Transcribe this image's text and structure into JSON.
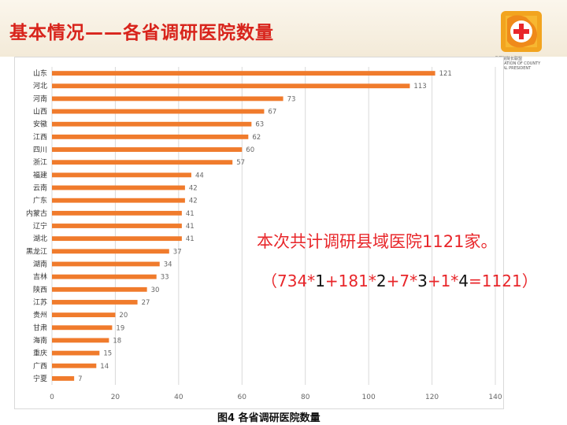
{
  "header": {
    "title": "基本情况——各省调研医院数量",
    "logo_text_top": "县医院院长联盟",
    "logo_text_line2": "SOCIATION OF COUNTY",
    "logo_text_line3": "SPITAL PRESIDENT"
  },
  "summary": {
    "text": "本次共计调研县域医院1121家。",
    "formula_parts": [
      {
        "text": "（734*",
        "color": "red"
      },
      {
        "text": "1",
        "color": "black"
      },
      {
        "text": "+181*",
        "color": "red"
      },
      {
        "text": "2",
        "color": "black"
      },
      {
        "text": "+7*",
        "color": "red"
      },
      {
        "text": "3",
        "color": "black"
      },
      {
        "text": "+1*",
        "color": "red"
      },
      {
        "text": "4",
        "color": "black"
      },
      {
        "text": "=1121）",
        "color": "red"
      }
    ]
  },
  "caption": "图4  各省调研医院数量",
  "colors": {
    "bar": "#f07b2c",
    "accent_red": "#e8262a",
    "title_red": "#d8241c",
    "grid": "#d9d9d9"
  },
  "chart_data": {
    "type": "bar",
    "orientation": "horizontal",
    "categories": [
      "山东",
      "河北",
      "河南",
      "山西",
      "安徽",
      "江西",
      "四川",
      "浙江",
      "福建",
      "云南",
      "广东",
      "内蒙古",
      "辽宁",
      "湖北",
      "黑龙江",
      "湖南",
      "吉林",
      "陕西",
      "江苏",
      "贵州",
      "甘肃",
      "海南",
      "重庆",
      "广西",
      "宁夏"
    ],
    "values": [
      121,
      113,
      73,
      67,
      63,
      62,
      60,
      57,
      44,
      42,
      42,
      41,
      41,
      41,
      37,
      34,
      33,
      30,
      27,
      20,
      19,
      18,
      15,
      14,
      7
    ],
    "xlim": [
      0,
      140
    ],
    "xticks": [
      0,
      20,
      40,
      60,
      80,
      100,
      120,
      140
    ],
    "grid": "vertical",
    "data_labels": true,
    "title": "",
    "xlabel": "",
    "ylabel": ""
  }
}
